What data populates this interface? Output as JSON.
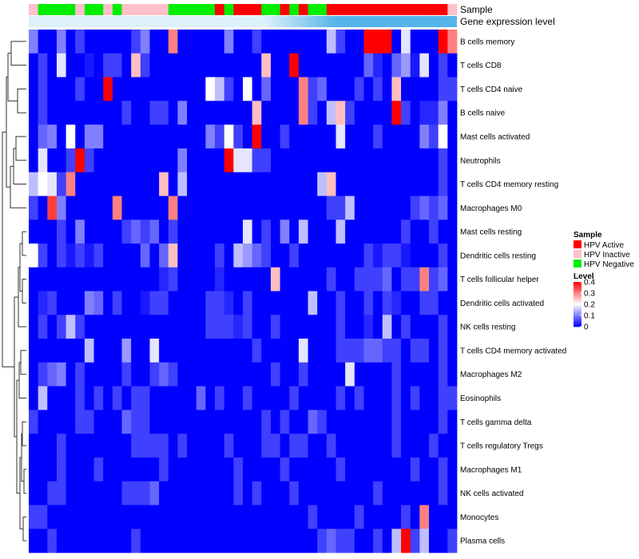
{
  "chart_data": {
    "type": "heatmap",
    "title": "",
    "rows": [
      "B cells memory",
      "T cells CD8",
      "T cells CD4 naive",
      "B cells naive",
      "Mast cells activated",
      "Neutrophils",
      "T cells CD4 memory resting",
      "Macrophages M0",
      "Mast cells resting",
      "Dendritic cells resting",
      "T cells follicular helper",
      "Dendritic cells activated",
      "NK cells resting",
      "T cells CD4 memory activated",
      "Macrophages M2",
      "Eosinophils",
      "T cells gamma delta",
      "T cells regulatory  Tregs",
      "Macrophages M1",
      "NK cells activated",
      "Monocytes",
      "Plasma cells"
    ],
    "sample_annotation": {
      "label": "Sample",
      "groups": [
        "HPV Inactive",
        "HPV Negative",
        "HPV Negative",
        "HPV Negative",
        "HPV Negative",
        "HPV Inactive",
        "HPV Negative",
        "HPV Negative",
        "HPV Inactive",
        "HPV Negative",
        "HPV Inactive",
        "HPV Inactive",
        "HPV Inactive",
        "HPV Inactive",
        "HPV Inactive",
        "HPV Negative",
        "HPV Negative",
        "HPV Negative",
        "HPV Negative",
        "HPV Negative",
        "HPV Active",
        "HPV Negative",
        "HPV Active",
        "HPV Active",
        "HPV Active",
        "HPV Negative",
        "HPV Negative",
        "HPV Active",
        "HPV Negative",
        "HPV Active",
        "HPV Negative",
        "HPV Negative",
        "HPV Active",
        "HPV Active",
        "HPV Active",
        "HPV Active",
        "HPV Active",
        "HPV Active",
        "HPV Active",
        "HPV Active",
        "HPV Active",
        "HPV Active",
        "HPV Active",
        "HPV Active",
        "HPV Active",
        "HPV Inactive"
      ]
    },
    "gene_annotation": {
      "label": "Gene expression level",
      "color": "#56B4E9",
      "gradient_end": "#DDF1FB"
    },
    "values": [
      [
        0.1,
        0.0,
        0.0,
        0.1,
        0.0,
        0.05,
        0.0,
        0.0,
        0.0,
        0.0,
        0.0,
        0.05,
        0.1,
        0.0,
        0.0,
        0.3,
        0.0,
        0.0,
        0.0,
        0.0,
        0.0,
        0.1,
        0.0,
        0.0,
        0.05,
        0.0,
        0.0,
        0.0,
        0.0,
        0.0,
        0.0,
        0.0,
        0.15,
        0.05,
        0.0,
        0.0,
        0.4,
        0.4,
        0.4,
        0.0,
        0.18,
        0.0,
        0.0,
        0.0,
        0.4,
        0.3
      ],
      [
        0.0,
        0.05,
        0.0,
        0.18,
        0.0,
        0.0,
        0.02,
        0.0,
        0.05,
        0.05,
        0.0,
        0.25,
        0.05,
        0.0,
        0.0,
        0.0,
        0.0,
        0.0,
        0.0,
        0.0,
        0.0,
        0.0,
        0.0,
        0.0,
        0.0,
        0.25,
        0.0,
        0.0,
        0.4,
        0.0,
        0.0,
        0.0,
        0.0,
        0.0,
        0.0,
        0.0,
        0.08,
        0.03,
        0.0,
        0.08,
        0.12,
        0.02,
        0.18,
        0.0,
        0.05,
        0.0
      ],
      [
        0.0,
        0.05,
        0.0,
        0.0,
        0.0,
        0.05,
        0.0,
        0.0,
        0.4,
        0.0,
        0.0,
        0.0,
        0.0,
        0.0,
        0.0,
        0.0,
        0.0,
        0.0,
        0.0,
        0.2,
        0.15,
        0.05,
        0.0,
        0.2,
        0.0,
        0.08,
        0.0,
        0.0,
        0.0,
        0.3,
        0.05,
        0.08,
        0.0,
        0.0,
        0.0,
        0.05,
        0.0,
        0.05,
        0.0,
        0.25,
        0.0,
        0.0,
        0.0,
        0.0,
        0.05,
        0.05
      ],
      [
        0.0,
        0.05,
        0.0,
        0.0,
        0.0,
        0.0,
        0.0,
        0.0,
        0.0,
        0.0,
        0.05,
        0.0,
        0.0,
        0.05,
        0.05,
        0.0,
        0.1,
        0.0,
        0.0,
        0.0,
        0.0,
        0.0,
        0.0,
        0.0,
        0.25,
        0.0,
        0.0,
        0.0,
        0.0,
        0.3,
        0.05,
        0.0,
        0.15,
        0.25,
        0.05,
        0.0,
        0.0,
        0.0,
        0.0,
        0.4,
        0.05,
        0.0,
        0.03,
        0.03,
        0.1,
        0.0
      ],
      [
        0.0,
        0.08,
        0.1,
        0.0,
        0.2,
        0.0,
        0.1,
        0.1,
        0.0,
        0.0,
        0.0,
        0.0,
        0.0,
        0.0,
        0.0,
        0.0,
        0.0,
        0.0,
        0.0,
        0.1,
        0.05,
        0.2,
        0.05,
        0.0,
        0.4,
        0.0,
        0.0,
        0.05,
        0.0,
        0.0,
        0.0,
        0.0,
        0.0,
        0.18,
        0.0,
        0.0,
        0.0,
        0.05,
        0.0,
        0.0,
        0.0,
        0.0,
        0.1,
        0.05,
        0.2,
        0.0
      ],
      [
        0.0,
        0.18,
        0.0,
        0.0,
        0.05,
        0.4,
        0.05,
        0.0,
        0.0,
        0.0,
        0.0,
        0.0,
        0.0,
        0.0,
        0.0,
        0.0,
        0.1,
        0.0,
        0.0,
        0.0,
        0.0,
        0.4,
        0.18,
        0.18,
        0.05,
        0.05,
        0.0,
        0.0,
        0.0,
        0.0,
        0.0,
        0.0,
        0.0,
        0.0,
        0.0,
        0.0,
        0.0,
        0.0,
        0.0,
        0.0,
        0.0,
        0.0,
        0.0,
        0.0,
        0.05,
        0.0
      ],
      [
        0.15,
        0.2,
        0.18,
        0.05,
        0.3,
        0.0,
        0.0,
        0.0,
        0.0,
        0.0,
        0.0,
        0.0,
        0.0,
        0.0,
        0.25,
        0.0,
        0.15,
        0.0,
        0.0,
        0.0,
        0.0,
        0.0,
        0.0,
        0.0,
        0.0,
        0.0,
        0.0,
        0.0,
        0.0,
        0.0,
        0.0,
        0.15,
        0.25,
        0.0,
        0.0,
        0.0,
        0.0,
        0.0,
        0.0,
        0.0,
        0.0,
        0.0,
        0.0,
        0.0,
        0.05,
        0.0
      ],
      [
        0.05,
        0.0,
        0.35,
        0.1,
        0.0,
        0.0,
        0.0,
        0.0,
        0.0,
        0.3,
        0.0,
        0.0,
        0.0,
        0.0,
        0.0,
        0.3,
        0.0,
        0.0,
        0.0,
        0.0,
        0.0,
        0.0,
        0.0,
        0.0,
        0.0,
        0.0,
        0.0,
        0.0,
        0.0,
        0.0,
        0.0,
        0.0,
        0.05,
        0.05,
        0.15,
        0.0,
        0.0,
        0.0,
        0.0,
        0.0,
        0.0,
        0.05,
        0.08,
        0.05,
        0.08,
        0.0
      ],
      [
        0.0,
        0.0,
        0.0,
        0.05,
        0.0,
        0.1,
        0.0,
        0.0,
        0.0,
        0.0,
        0.05,
        0.08,
        0.05,
        0.08,
        0.0,
        0.05,
        0.0,
        0.0,
        0.0,
        0.0,
        0.0,
        0.0,
        0.0,
        0.18,
        0.0,
        0.05,
        0.0,
        0.1,
        0.0,
        0.15,
        0.0,
        0.0,
        0.0,
        0.15,
        0.0,
        0.0,
        0.0,
        0.0,
        0.0,
        0.0,
        0.05,
        0.0,
        0.0,
        0.05,
        0.0,
        0.0
      ],
      [
        0.2,
        0.05,
        0.0,
        0.05,
        0.02,
        0.05,
        0.02,
        0.05,
        0.0,
        0.0,
        0.0,
        0.0,
        0.08,
        0.0,
        0.08,
        0.25,
        0.0,
        0.0,
        0.0,
        0.0,
        0.05,
        0.0,
        0.15,
        0.12,
        0.08,
        0.05,
        0.0,
        0.0,
        0.05,
        0.0,
        0.0,
        0.0,
        0.0,
        0.0,
        0.0,
        0.0,
        0.05,
        0.02,
        0.05,
        0.05,
        0.02,
        0.0,
        0.0,
        0.0,
        0.05,
        0.0
      ],
      [
        0.0,
        0.0,
        0.0,
        0.0,
        0.0,
        0.0,
        0.0,
        0.0,
        0.0,
        0.0,
        0.0,
        0.0,
        0.0,
        0.0,
        0.03,
        0.05,
        0.0,
        0.0,
        0.0,
        0.0,
        0.03,
        0.0,
        0.0,
        0.0,
        0.0,
        0.0,
        0.25,
        0.0,
        0.0,
        0.0,
        0.0,
        0.0,
        0.05,
        0.0,
        0.0,
        0.05,
        0.05,
        0.05,
        0.08,
        0.0,
        0.05,
        0.05,
        0.3,
        0.05,
        0.08,
        0.0
      ],
      [
        0.0,
        0.03,
        0.05,
        0.0,
        0.0,
        0.0,
        0.1,
        0.08,
        0.0,
        0.05,
        0.0,
        0.0,
        0.02,
        0.05,
        0.05,
        0.0,
        0.0,
        0.0,
        0.0,
        0.05,
        0.05,
        0.03,
        0.0,
        0.05,
        0.0,
        0.0,
        0.0,
        0.0,
        0.0,
        0.0,
        0.15,
        0.0,
        0.0,
        0.05,
        0.0,
        0.0,
        0.05,
        0.0,
        0.05,
        0.03,
        0.0,
        0.0,
        0.05,
        0.05,
        0.0,
        0.0
      ],
      [
        0.0,
        0.05,
        0.0,
        0.05,
        0.15,
        0.05,
        0.0,
        0.0,
        0.0,
        0.0,
        0.0,
        0.0,
        0.0,
        0.0,
        0.0,
        0.0,
        0.0,
        0.0,
        0.0,
        0.05,
        0.05,
        0.05,
        0.03,
        0.05,
        0.0,
        0.0,
        0.05,
        0.0,
        0.0,
        0.0,
        0.0,
        0.0,
        0.0,
        0.05,
        0.0,
        0.0,
        0.03,
        0.0,
        0.15,
        0.0,
        0.05,
        0.0,
        0.0,
        0.0,
        0.05,
        0.0
      ],
      [
        0.0,
        0.0,
        0.0,
        0.0,
        0.0,
        0.0,
        0.15,
        0.0,
        0.0,
        0.0,
        0.12,
        0.0,
        0.0,
        0.18,
        0.0,
        0.0,
        0.0,
        0.0,
        0.0,
        0.0,
        0.0,
        0.0,
        0.0,
        0.0,
        0.05,
        0.0,
        0.0,
        0.0,
        0.0,
        0.18,
        0.0,
        0.0,
        0.0,
        0.05,
        0.05,
        0.05,
        0.08,
        0.08,
        0.05,
        0.05,
        0.0,
        0.05,
        0.05,
        0.0,
        0.05,
        0.0
      ],
      [
        0.0,
        0.05,
        0.08,
        0.1,
        0.0,
        0.05,
        0.0,
        0.0,
        0.0,
        0.0,
        0.05,
        0.0,
        0.0,
        0.05,
        0.08,
        0.05,
        0.0,
        0.0,
        0.0,
        0.0,
        0.0,
        0.0,
        0.0,
        0.0,
        0.0,
        0.0,
        0.05,
        0.0,
        0.0,
        0.05,
        0.0,
        0.0,
        0.0,
        0.0,
        0.18,
        0.0,
        0.0,
        0.0,
        0.0,
        0.05,
        0.0,
        0.0,
        0.0,
        0.0,
        0.05,
        0.0
      ],
      [
        0.0,
        0.15,
        0.0,
        0.0,
        0.0,
        0.05,
        0.0,
        0.05,
        0.0,
        0.05,
        0.0,
        0.05,
        0.05,
        0.0,
        0.0,
        0.0,
        0.0,
        0.0,
        0.08,
        0.0,
        0.05,
        0.0,
        0.0,
        0.05,
        0.0,
        0.0,
        0.0,
        0.0,
        0.05,
        0.0,
        0.0,
        0.0,
        0.0,
        0.05,
        0.0,
        0.05,
        0.0,
        0.0,
        0.0,
        0.05,
        0.0,
        0.05,
        0.0,
        0.0,
        0.05,
        0.05
      ],
      [
        0.05,
        0.0,
        0.0,
        0.0,
        0.0,
        0.05,
        0.05,
        0.0,
        0.0,
        0.0,
        0.08,
        0.05,
        0.05,
        0.0,
        0.0,
        0.0,
        0.0,
        0.0,
        0.0,
        0.0,
        0.0,
        0.0,
        0.0,
        0.0,
        0.0,
        0.05,
        0.0,
        0.05,
        0.0,
        0.0,
        0.08,
        0.05,
        0.0,
        0.0,
        0.0,
        0.0,
        0.0,
        0.0,
        0.0,
        0.05,
        0.0,
        0.0,
        0.0,
        0.0,
        0.05,
        0.0
      ],
      [
        0.0,
        0.0,
        0.0,
        0.05,
        0.0,
        0.0,
        0.0,
        0.0,
        0.0,
        0.0,
        0.0,
        0.05,
        0.05,
        0.05,
        0.05,
        0.0,
        0.05,
        0.0,
        0.0,
        0.0,
        0.0,
        0.05,
        0.0,
        0.0,
        0.0,
        0.05,
        0.05,
        0.0,
        0.05,
        0.05,
        0.0,
        0.0,
        0.05,
        0.0,
        0.0,
        0.0,
        0.0,
        0.0,
        0.0,
        0.05,
        0.0,
        0.0,
        0.0,
        0.05,
        0.0,
        0.0
      ],
      [
        0.0,
        0.0,
        0.0,
        0.05,
        0.0,
        0.0,
        0.0,
        0.05,
        0.0,
        0.0,
        0.0,
        0.0,
        0.0,
        0.0,
        0.05,
        0.0,
        0.0,
        0.0,
        0.0,
        0.0,
        0.0,
        0.0,
        0.05,
        0.0,
        0.0,
        0.0,
        0.0,
        0.05,
        0.0,
        0.0,
        0.0,
        0.0,
        0.0,
        0.05,
        0.0,
        0.0,
        0.0,
        0.0,
        0.0,
        0.0,
        0.0,
        0.05,
        0.0,
        0.0,
        0.05,
        0.0
      ],
      [
        0.0,
        0.0,
        0.05,
        0.05,
        0.0,
        0.0,
        0.0,
        0.0,
        0.0,
        0.0,
        0.05,
        0.05,
        0.05,
        0.08,
        0.0,
        0.0,
        0.0,
        0.0,
        0.0,
        0.0,
        0.0,
        0.0,
        0.05,
        0.0,
        0.05,
        0.0,
        0.0,
        0.0,
        0.05,
        0.0,
        0.0,
        0.0,
        0.0,
        0.0,
        0.0,
        0.0,
        0.0,
        0.05,
        0.0,
        0.0,
        0.0,
        0.0,
        0.0,
        0.0,
        0.05,
        0.0
      ],
      [
        0.05,
        0.05,
        0.0,
        0.0,
        0.0,
        0.0,
        0.0,
        0.0,
        0.0,
        0.0,
        0.0,
        0.0,
        0.0,
        0.0,
        0.0,
        0.0,
        0.0,
        0.0,
        0.0,
        0.0,
        0.0,
        0.0,
        0.0,
        0.0,
        0.0,
        0.0,
        0.0,
        0.0,
        0.0,
        0.0,
        0.05,
        0.0,
        0.0,
        0.0,
        0.0,
        0.05,
        0.0,
        0.0,
        0.0,
        0.0,
        0.05,
        0.0,
        0.3,
        0.0,
        0.0,
        0.0
      ],
      [
        0.0,
        0.0,
        0.05,
        0.0,
        0.0,
        0.0,
        0.0,
        0.0,
        0.0,
        0.0,
        0.0,
        0.05,
        0.0,
        0.0,
        0.0,
        0.0,
        0.0,
        0.0,
        0.0,
        0.0,
        0.0,
        0.0,
        0.0,
        0.0,
        0.0,
        0.0,
        0.0,
        0.0,
        0.0,
        0.0,
        0.0,
        0.05,
        0.08,
        0.05,
        0.05,
        0.0,
        0.0,
        0.05,
        0.0,
        0.15,
        0.4,
        0.05,
        0.15,
        0.0,
        0.0,
        0.05
      ]
    ],
    "legend": {
      "sample_title": "Sample",
      "entries": [
        {
          "label": "HPV Active",
          "color": "#FF0000"
        },
        {
          "label": "HPV Inactive",
          "color": "#FFC0CB"
        },
        {
          "label": "HPV Negative",
          "color": "#00EE00"
        }
      ],
      "level_title": "Level",
      "level_ticks": [
        "0.4",
        "0.3",
        "0.2",
        "0.1",
        "0"
      ],
      "level_tick_values": [
        0.4,
        0.3,
        0.2,
        0.1,
        0
      ],
      "level_range": [
        0,
        0.4
      ],
      "colors": {
        "low": "#0000FF",
        "mid": "#FFFFFF",
        "high": "#FF0000"
      }
    }
  }
}
